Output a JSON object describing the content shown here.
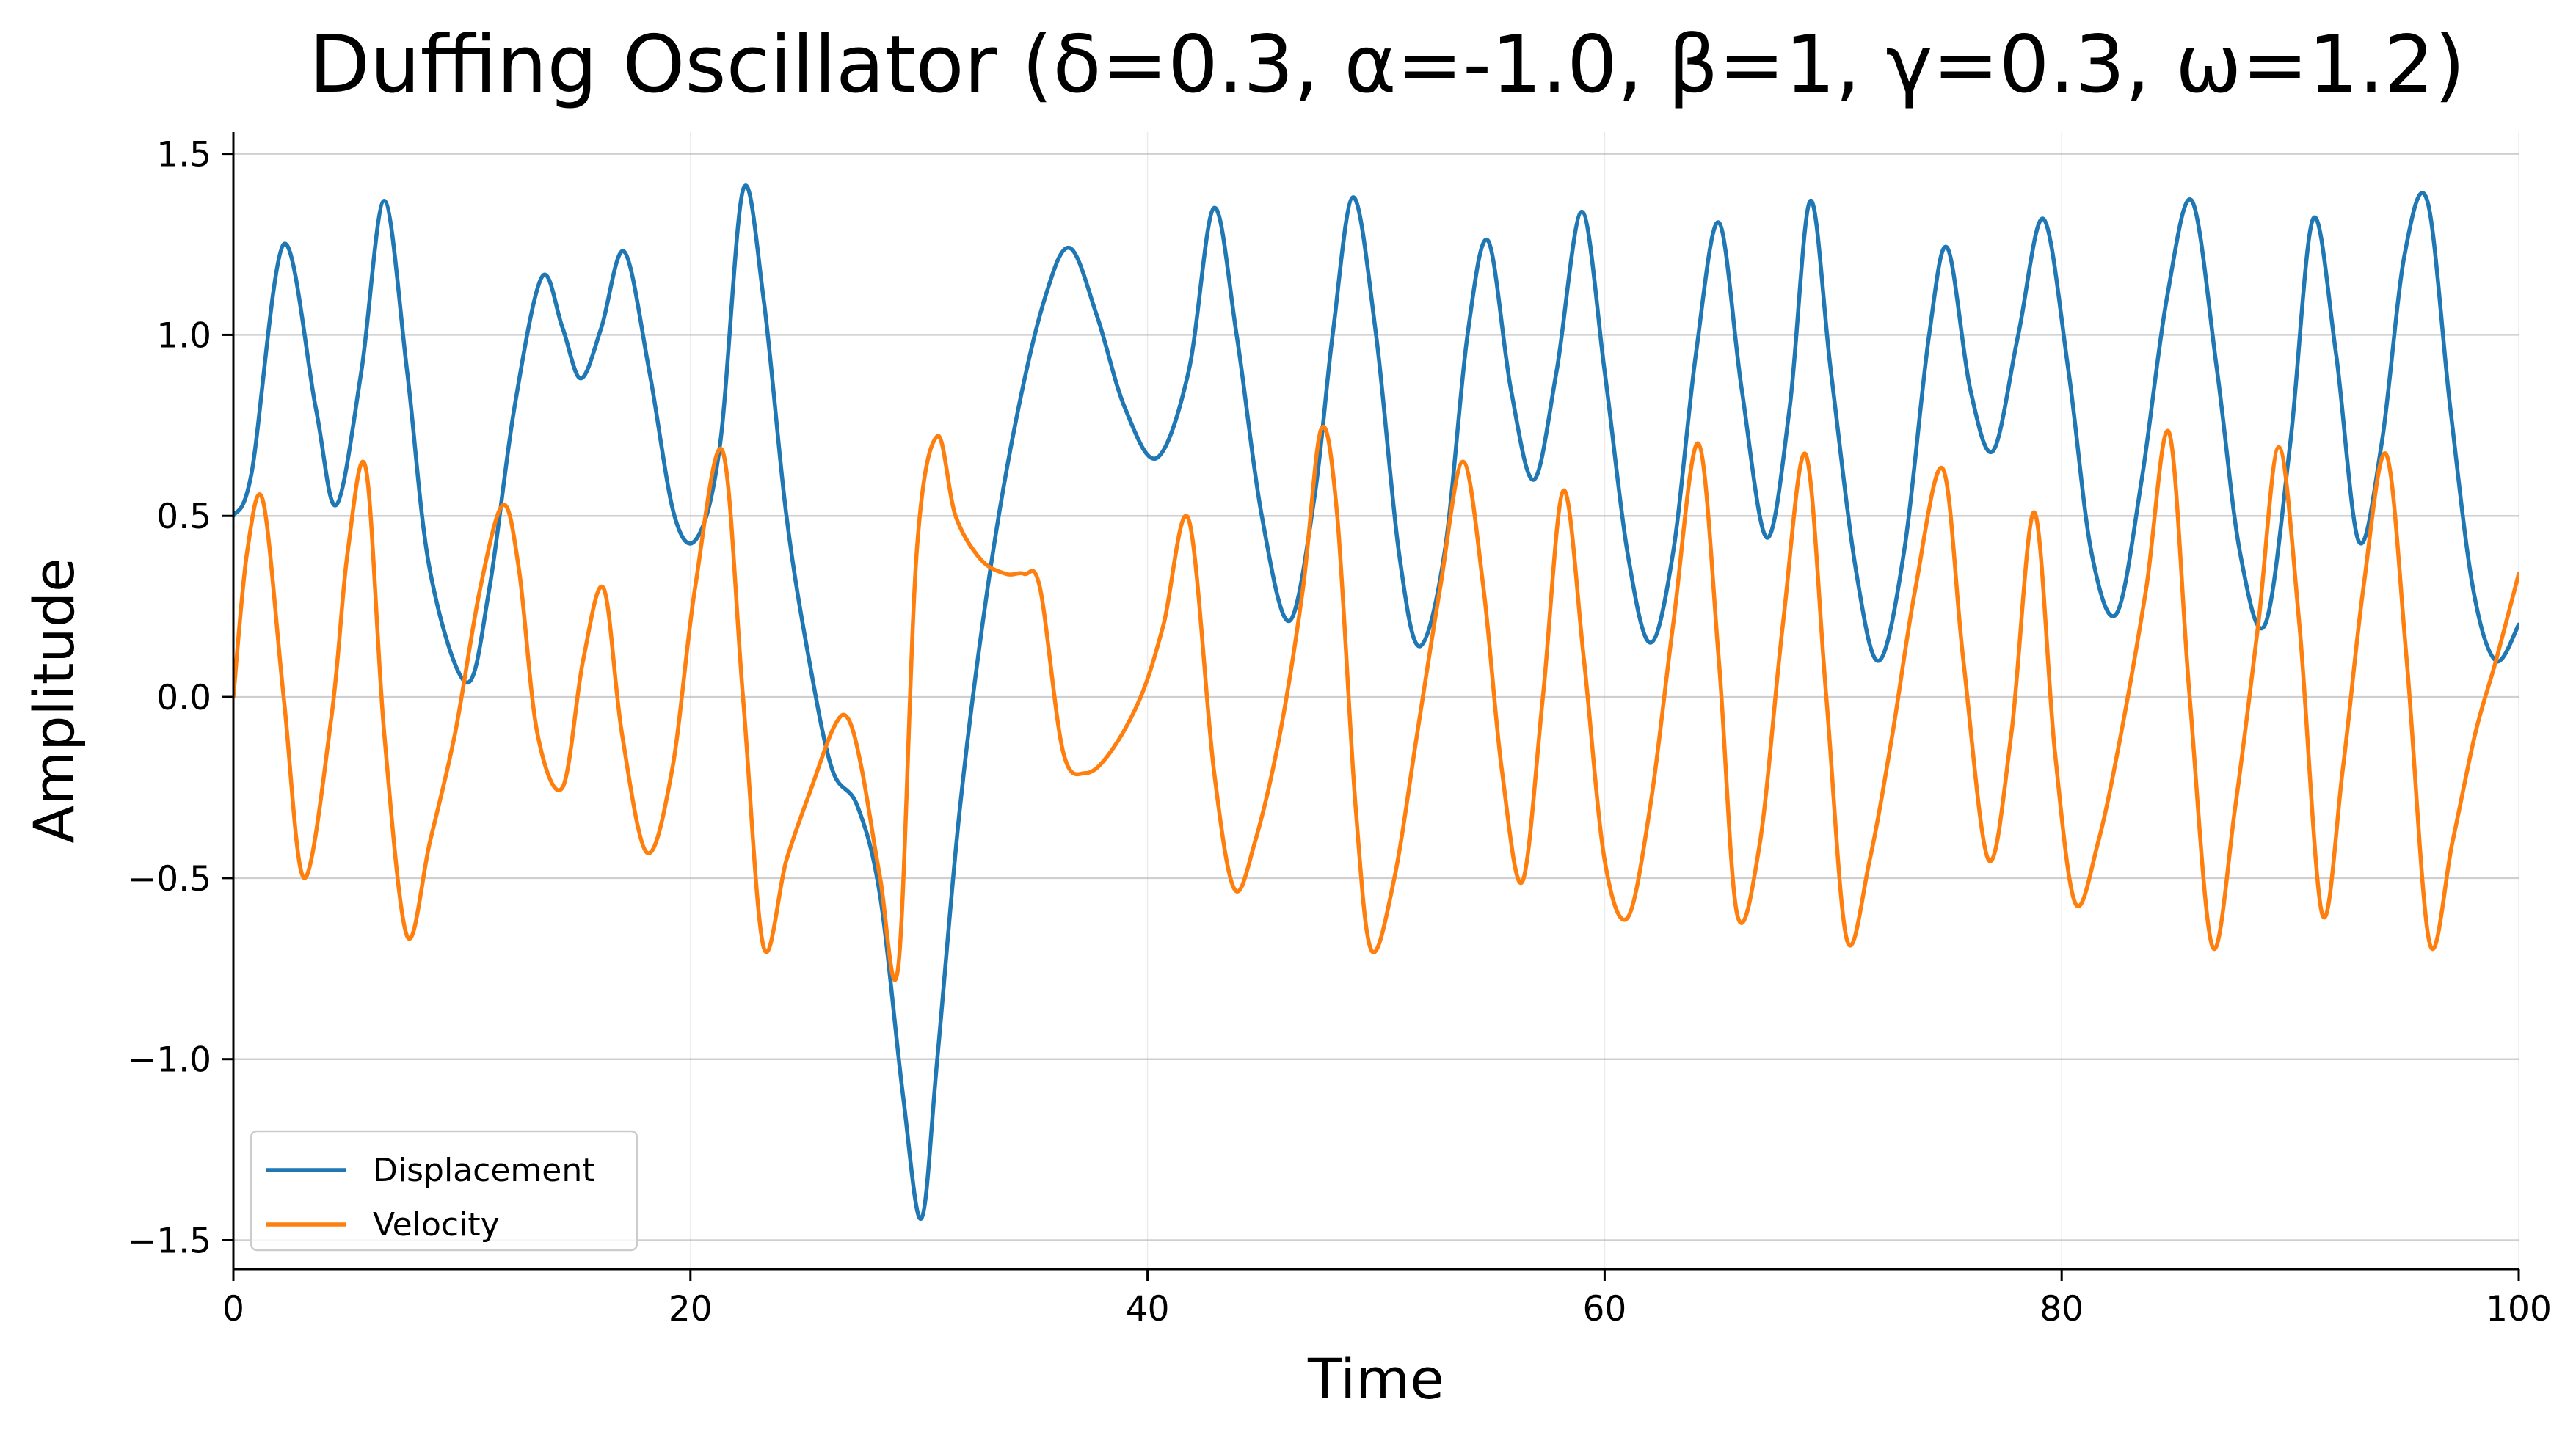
{
  "chart_data": {
    "type": "line",
    "title": "Duffing Oscillator (δ=0.3, α=-1.0, β=1, γ=0.3, ω=1.2)",
    "xlabel": "Time",
    "ylabel": "Amplitude",
    "xlim": [
      0,
      100
    ],
    "ylim": [
      -1.58,
      1.56
    ],
    "xticks": [
      0,
      20,
      40,
      60,
      80,
      100
    ],
    "yticks": [
      -1.5,
      -1.0,
      -0.5,
      0.0,
      0.5,
      1.0,
      1.5
    ],
    "xtick_labels": [
      "0",
      "20",
      "40",
      "60",
      "80",
      "100"
    ],
    "ytick_labels": [
      "−1.5",
      "−1.0",
      "−0.5",
      "0.0",
      "0.5",
      "1.0",
      "1.5"
    ],
    "grid": "on",
    "legend_position": "lower-left",
    "series": [
      {
        "name": "Displacement",
        "color": "#1f77b4",
        "x": [
          0,
          0.8,
          2.2,
          3.6,
          4.5,
          5.6,
          6.6,
          7.6,
          8.6,
          10.2,
          11.2,
          12.3,
          13.5,
          14.4,
          15.2,
          16.1,
          17.1,
          18.2,
          19.3,
          20.3,
          21.3,
          22.3,
          23.2,
          24.2,
          25.2,
          26.2,
          27.3,
          28.3,
          29.3,
          30.1,
          30.8,
          31.8,
          33.0,
          34.2,
          35.5,
          36.6,
          37.8,
          39.0,
          40.4,
          41.8,
          42.9,
          43.9,
          45.0,
          46.2,
          47.3,
          48.1,
          49.0,
          50.0,
          51.0,
          51.9,
          53.0,
          54.0,
          54.9,
          55.9,
          56.9,
          57.9,
          59.0,
          60.0,
          61.0,
          62.0,
          63.0,
          64.0,
          65.0,
          66.0,
          67.1,
          68.1,
          69.0,
          69.9,
          71.0,
          72.0,
          73.1,
          74.2,
          75.0,
          76.0,
          77.0,
          78.1,
          79.2,
          80.3,
          81.3,
          82.4,
          83.5,
          84.6,
          85.7,
          86.8,
          87.8,
          88.9,
          90.0,
          91.0,
          92.0,
          93.0,
          94.0,
          95.0,
          96.0,
          97.0,
          98.0,
          99.0,
          100.0
        ],
        "y": [
          0.5,
          0.62,
          1.25,
          0.8,
          0.53,
          0.9,
          1.37,
          0.9,
          0.35,
          0.04,
          0.3,
          0.8,
          1.16,
          1.02,
          0.88,
          1.02,
          1.23,
          0.9,
          0.5,
          0.44,
          0.7,
          1.4,
          1.1,
          0.5,
          0.1,
          -0.2,
          -0.3,
          -0.55,
          -1.1,
          -1.44,
          -1.0,
          -0.3,
          0.3,
          0.75,
          1.1,
          1.24,
          1.05,
          0.8,
          0.66,
          0.9,
          1.35,
          1.0,
          0.5,
          0.21,
          0.55,
          1.0,
          1.38,
          1.0,
          0.4,
          0.14,
          0.4,
          1.0,
          1.26,
          0.85,
          0.6,
          0.9,
          1.34,
          0.9,
          0.4,
          0.15,
          0.4,
          0.95,
          1.31,
          0.85,
          0.44,
          0.8,
          1.37,
          0.9,
          0.35,
          0.1,
          0.4,
          1.0,
          1.24,
          0.85,
          0.68,
          1.0,
          1.32,
          0.9,
          0.4,
          0.23,
          0.6,
          1.1,
          1.37,
          0.9,
          0.4,
          0.2,
          0.7,
          1.32,
          0.95,
          0.43,
          0.7,
          1.22,
          1.37,
          0.8,
          0.3,
          0.1,
          0.2
        ]
      },
      {
        "name": "Velocity",
        "color": "#ff7f0e",
        "x": [
          0,
          0.6,
          1.3,
          2.2,
          3.1,
          4.3,
          5.0,
          5.8,
          6.6,
          7.6,
          8.6,
          9.7,
          10.8,
          11.8,
          12.5,
          13.3,
          14.4,
          15.3,
          16.2,
          17.0,
          18.1,
          19.2,
          20.2,
          21.4,
          22.3,
          23.2,
          24.2,
          25.3,
          26.3,
          26.9,
          27.5,
          28.3,
          29.1,
          29.9,
          30.8,
          31.6,
          32.7,
          33.8,
          34.6,
          35.3,
          36.3,
          37.3,
          38.4,
          39.7,
          40.7,
          41.8,
          42.9,
          43.8,
          44.7,
          45.8,
          46.8,
          47.6,
          48.3,
          49.1,
          49.8,
          50.8,
          51.8,
          52.8,
          53.8,
          54.7,
          55.5,
          56.4,
          57.3,
          58.2,
          59.1,
          60.0,
          61.0,
          62.0,
          63.0,
          64.1,
          65.0,
          65.8,
          66.8,
          67.8,
          68.8,
          69.7,
          70.6,
          71.6,
          72.6,
          73.6,
          74.8,
          75.7,
          76.8,
          77.8,
          78.8,
          79.7,
          80.6,
          81.6,
          82.6,
          83.7,
          84.7,
          85.6,
          86.6,
          87.6,
          88.6,
          89.5,
          90.4,
          91.4,
          92.3,
          93.2,
          94.2,
          95.1,
          96.1,
          97.1,
          98.1,
          99.0,
          100.0
        ],
        "y": [
          0.0,
          0.4,
          0.54,
          0.0,
          -0.5,
          -0.05,
          0.4,
          0.63,
          -0.1,
          -0.66,
          -0.4,
          -0.1,
          0.3,
          0.53,
          0.35,
          -0.1,
          -0.25,
          0.1,
          0.3,
          -0.1,
          -0.43,
          -0.2,
          0.3,
          0.68,
          0.0,
          -0.69,
          -0.45,
          -0.25,
          -0.08,
          -0.06,
          -0.2,
          -0.5,
          -0.74,
          0.4,
          0.72,
          0.5,
          0.38,
          0.34,
          0.34,
          0.3,
          -0.15,
          -0.21,
          -0.15,
          0.0,
          0.2,
          0.49,
          -0.2,
          -0.53,
          -0.4,
          -0.1,
          0.3,
          0.74,
          0.5,
          -0.3,
          -0.7,
          -0.5,
          -0.1,
          0.3,
          0.65,
          0.3,
          -0.2,
          -0.51,
          0.0,
          0.57,
          0.1,
          -0.45,
          -0.61,
          -0.3,
          0.2,
          0.7,
          0.1,
          -0.6,
          -0.4,
          0.2,
          0.67,
          0.0,
          -0.67,
          -0.45,
          -0.1,
          0.3,
          0.63,
          0.1,
          -0.45,
          -0.1,
          0.51,
          -0.15,
          -0.57,
          -0.4,
          -0.1,
          0.3,
          0.73,
          0.0,
          -0.69,
          -0.3,
          0.2,
          0.69,
          0.2,
          -0.6,
          -0.2,
          0.3,
          0.67,
          0.1,
          -0.68,
          -0.4,
          -0.1,
          0.1,
          0.34
        ]
      }
    ]
  }
}
